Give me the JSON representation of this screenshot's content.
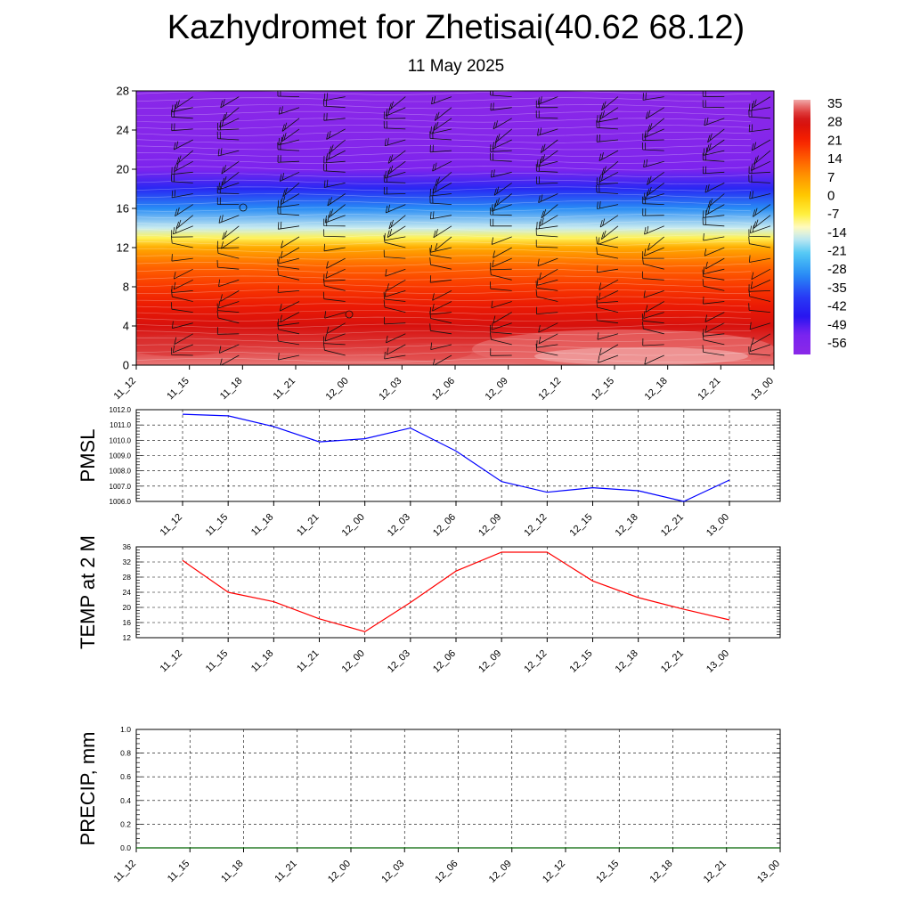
{
  "title": "Kazhydromet for Zhetisai(40.62 68.12)",
  "subtitle": "11 May 2025",
  "time_labels": [
    "11_12",
    "11_15",
    "11_18",
    "11_21",
    "12_00",
    "12_03",
    "12_06",
    "12_09",
    "12_12",
    "12_15",
    "12_18",
    "12_21",
    "13_00"
  ],
  "chart_data": [
    {
      "type": "heatmap",
      "title": "",
      "ylabel": "",
      "ylim": [
        0,
        28
      ],
      "yticks": [
        0,
        4,
        8,
        12,
        16,
        20,
        24,
        28
      ],
      "colorbar": {
        "labels": [
          "35",
          "28",
          "21",
          "14",
          "7",
          "0",
          "-7",
          "-14",
          "-21",
          "-28",
          "-35",
          "-42",
          "-49",
          "-56"
        ],
        "range": [
          -60,
          36
        ]
      },
      "temperature_by_height": {
        "heights": [
          0,
          2,
          4,
          6,
          8,
          10,
          12,
          13,
          14,
          16,
          18,
          20,
          22,
          24,
          26,
          28
        ],
        "values": [
          34,
          31,
          27,
          23,
          18,
          13,
          4,
          -8,
          -16,
          -30,
          -42,
          -54,
          -57,
          -58,
          -59,
          -60
        ]
      },
      "wind_barbs": true
    },
    {
      "type": "line",
      "ylabel": "PMSL",
      "ylim": [
        1006.0,
        1012.0
      ],
      "yticks": [
        "1006.0",
        "1007.0",
        "1008.0",
        "1009.0",
        "1010.0",
        "1011.0",
        "1012.0"
      ],
      "grid": true,
      "color": "#0000ff",
      "x": [
        "11_12",
        "11_15",
        "11_18",
        "11_21",
        "12_00",
        "12_03",
        "12_06",
        "12_09",
        "12_12",
        "12_15",
        "12_18",
        "12_21",
        "13_00"
      ],
      "values": [
        1011.7,
        1011.6,
        1010.9,
        1009.9,
        1010.1,
        1010.8,
        1009.3,
        1007.3,
        1006.6,
        1006.9,
        1006.7,
        1006.0,
        1007.4
      ]
    },
    {
      "type": "line",
      "ylabel": "TEMP at 2 M",
      "ylim": [
        12,
        36
      ],
      "yticks": [
        "12",
        "16",
        "20",
        "24",
        "28",
        "32",
        "36"
      ],
      "grid": true,
      "color": "#ff0000",
      "x": [
        "11_12",
        "11_15",
        "11_18",
        "11_21",
        "12_00",
        "12_03",
        "12_06",
        "12_09",
        "12_12",
        "12_15",
        "12_18",
        "12_21",
        "13_00"
      ],
      "values": [
        32.4,
        24.0,
        21.5,
        17.0,
        13.6,
        21.3,
        29.6,
        34.6,
        34.6,
        27.0,
        22.6,
        19.5,
        16.7
      ]
    },
    {
      "type": "line",
      "ylabel": "PRECIP, mm",
      "ylim": [
        0.0,
        1.0
      ],
      "yticks": [
        "0.0",
        "0.2",
        "0.4",
        "0.6",
        "0.8",
        "1.0"
      ],
      "grid": true,
      "color": "#006400",
      "x": [
        "11_12",
        "11_15",
        "11_18",
        "11_21",
        "12_00",
        "12_03",
        "12_06",
        "12_09",
        "12_12",
        "12_15",
        "12_18",
        "12_21",
        "13_00"
      ],
      "values": [
        0,
        0,
        0,
        0,
        0,
        0,
        0,
        0,
        0,
        0,
        0,
        0,
        0
      ]
    }
  ]
}
